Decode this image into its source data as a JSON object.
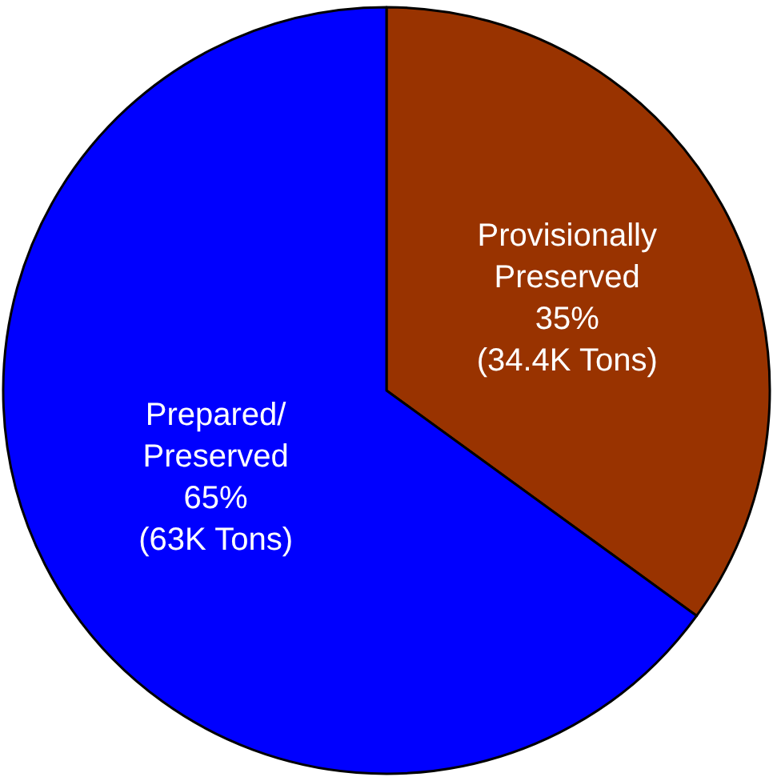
{
  "chart_data": {
    "type": "pie",
    "categories": [
      "Provisionally\nPreserved",
      "Prepared/\nPreserved"
    ],
    "values": [
      35,
      65
    ],
    "value_labels": [
      "35%\n(34.4K Tons)",
      "65%\n(63K Tons)"
    ],
    "colors": [
      "#993300",
      "#0000ff"
    ],
    "legend": false
  }
}
